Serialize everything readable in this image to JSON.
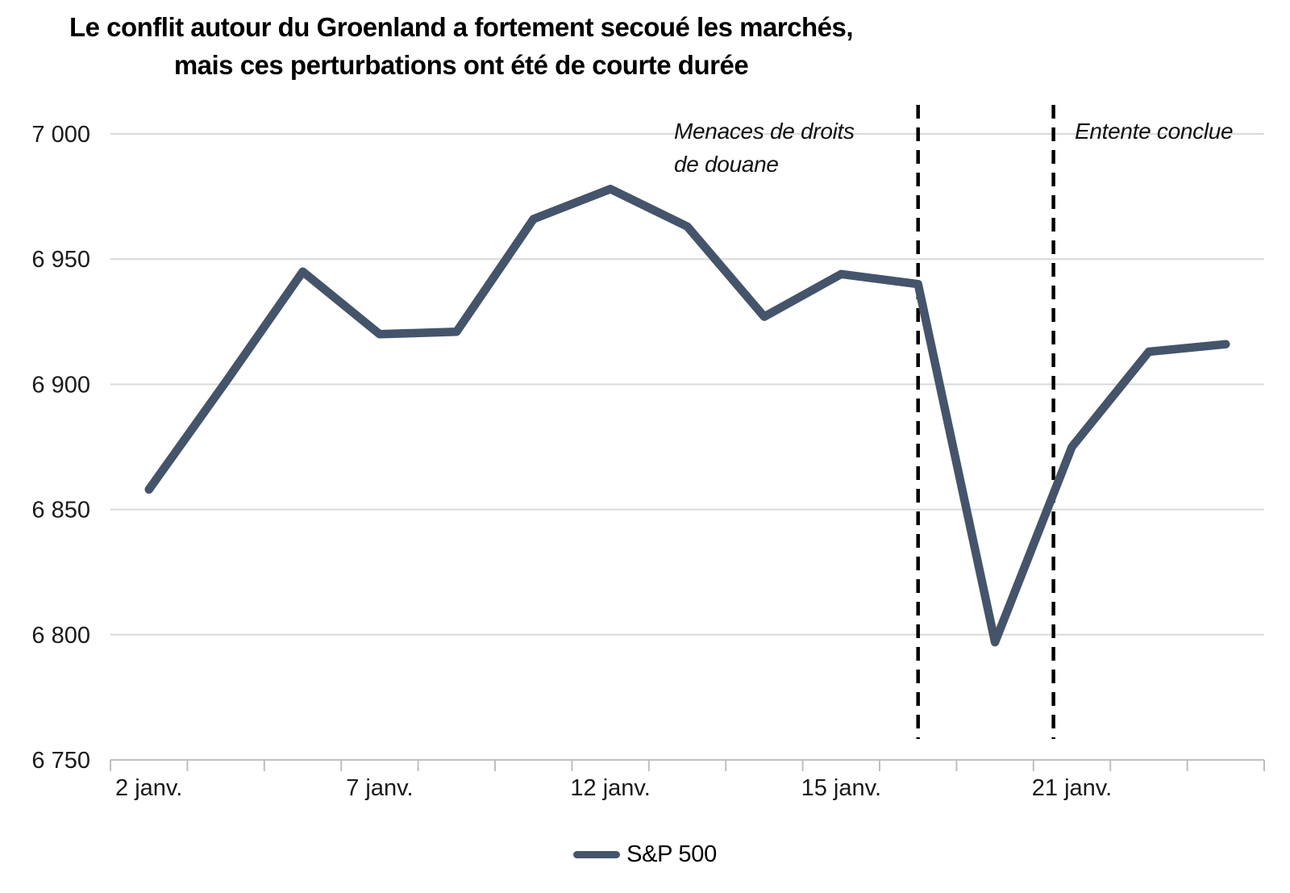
{
  "title": {
    "line1": "Le conflit autour du Groenland a fortement secoué les marchés,",
    "line2": "mais ces perturbations ont été de courte durée"
  },
  "legend": {
    "label": "S&P 500"
  },
  "colors": {
    "series_line": "#44546A",
    "gridline": "#D9D9D9",
    "axis": "#BFBFBF",
    "event_line": "#000000",
    "label_text": "#1A1A1A"
  },
  "chart_data": {
    "type": "line",
    "title": "Le conflit autour du Groenland a fortement secoué les marchés, mais ces perturbations ont été de courte durée",
    "xlabel": "",
    "ylabel": "",
    "ylim": [
      6750,
      7000
    ],
    "grid": "horizontal",
    "legend_position": "bottom-center",
    "series": [
      {
        "name": "S&P 500",
        "color": "#44546A",
        "values": [
          6858,
          6901,
          6945,
          6920,
          6921,
          6966,
          6978,
          6963,
          6927,
          6944,
          6940,
          6797,
          6875,
          6913,
          6916
        ]
      }
    ],
    "x_labels": [
      {
        "index": 0,
        "label": "2 janv."
      },
      {
        "index": 3,
        "label": "7 janv."
      },
      {
        "index": 6,
        "label": "12 janv."
      },
      {
        "index": 9,
        "label": "15 janv."
      },
      {
        "index": 12,
        "label": "21 janv."
      }
    ],
    "y_ticks": [
      {
        "value": 7000,
        "label": "7 000"
      },
      {
        "value": 6950,
        "label": "6 950"
      },
      {
        "value": 6900,
        "label": "6 900"
      },
      {
        "value": 6850,
        "label": "6 850"
      },
      {
        "value": 6800,
        "label": "6 800"
      },
      {
        "value": 6750,
        "label": "6 750"
      }
    ],
    "annotations": [
      {
        "label": "Menaces de droits de douane",
        "x_slot": 10.0,
        "label_side": "left"
      },
      {
        "label": "Entente conclue",
        "x_slot": 11.76,
        "label_side": "right"
      }
    ]
  }
}
